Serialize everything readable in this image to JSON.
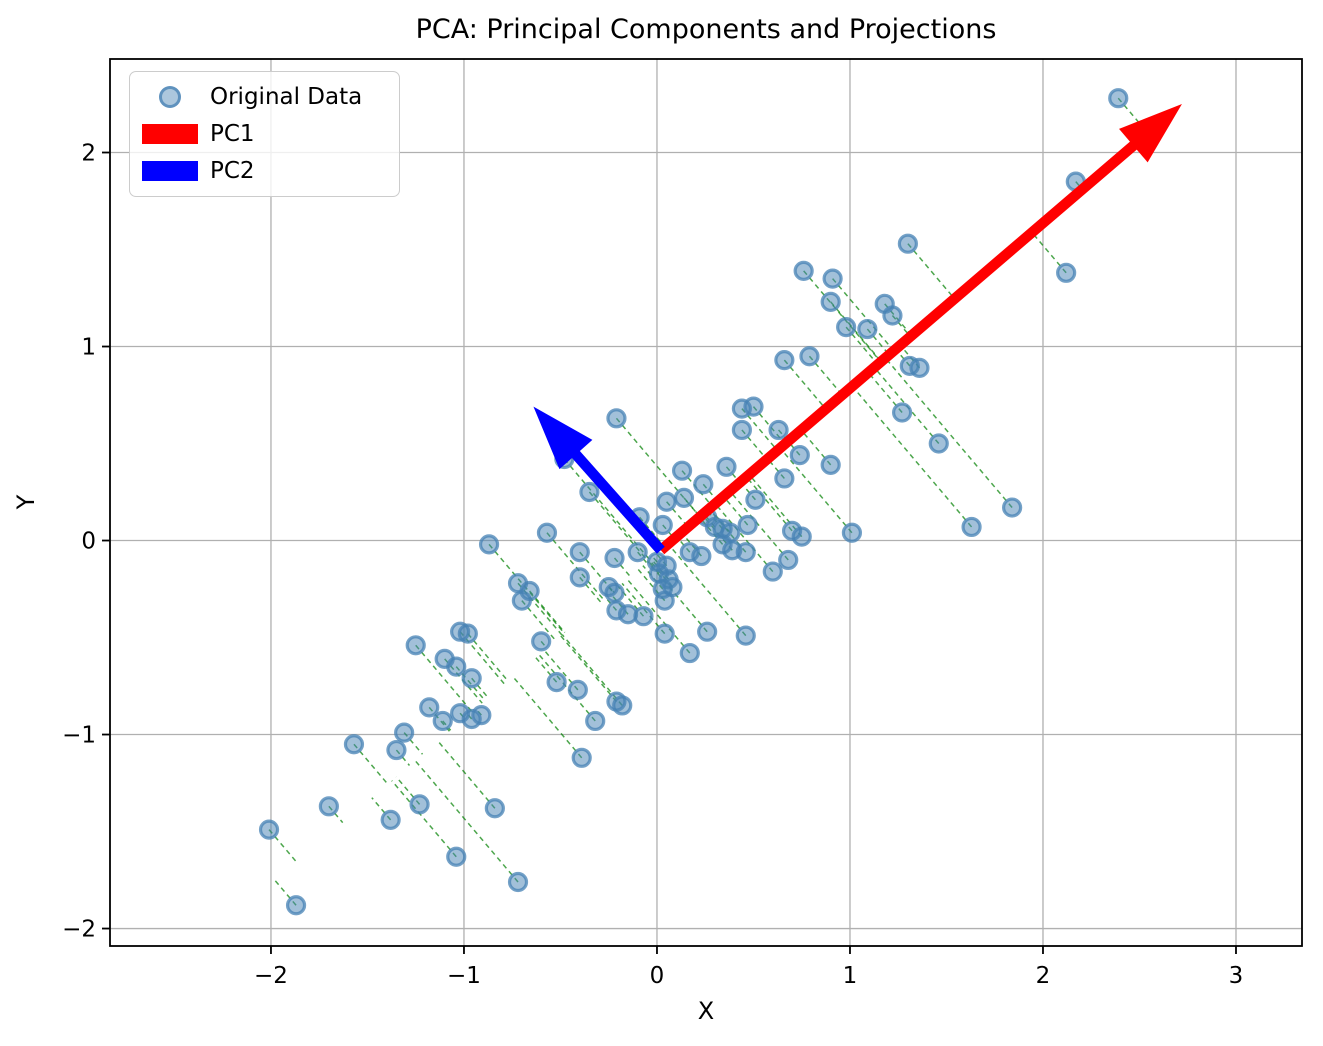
{
  "title": "PCA: Principal Components and Projections",
  "axes": {
    "xlabel": "X",
    "ylabel": "Y",
    "x_ticks": {
      "values": [
        -2,
        -1,
        0,
        1,
        2,
        3
      ],
      "labels": [
        "−2",
        "−1",
        "0",
        "1",
        "2",
        "3"
      ]
    },
    "y_ticks": {
      "values": [
        -2,
        -1,
        0,
        1,
        2
      ],
      "labels": [
        "−2",
        "−1",
        "0",
        "1",
        "2"
      ]
    }
  },
  "legend": {
    "items": [
      {
        "label": "Original Data",
        "type": "marker",
        "color": "#4682B4"
      },
      {
        "label": "PC1",
        "type": "patch",
        "color": "#FF0000"
      },
      {
        "label": "PC2",
        "type": "patch",
        "color": "#0000FF"
      }
    ]
  },
  "colors": {
    "scatter_fill": "#4682B4",
    "scatter_edge": "#4682B4",
    "projection_line": "#008000",
    "pc1": "#FF0000",
    "pc2": "#0000FF",
    "grid": "#b0b0b0",
    "frame": "#000000",
    "text": "#000000"
  },
  "chart_data": {
    "type": "scatter",
    "title": "PCA: Principal Components and Projections",
    "xlabel": "X",
    "ylabel": "Y",
    "xlim": [
      -2.834,
      3.342
    ],
    "ylim": [
      -2.09,
      2.482
    ],
    "grid": true,
    "legend_position": "upper left",
    "mean": [
      0.02,
      -0.05
    ],
    "pc1": {
      "name": "PC1",
      "color": "#FF0000",
      "start": [
        0.02,
        -0.05
      ],
      "tip": [
        2.72,
        2.25
      ]
    },
    "pc2": {
      "name": "PC2",
      "color": "#0000FF",
      "start": [
        0.02,
        -0.05
      ],
      "tip": [
        -0.64,
        0.69
      ]
    },
    "projection_lines": {
      "color": "#008000",
      "style": "dashed",
      "target": "pc1-axis"
    },
    "series": [
      {
        "name": "Original Data",
        "points": [
          [
            2.39,
            2.28
          ],
          [
            2.17,
            1.85
          ],
          [
            2.12,
            1.38
          ],
          [
            1.3,
            1.53
          ],
          [
            0.76,
            1.39
          ],
          [
            0.91,
            1.35
          ],
          [
            0.9,
            1.23
          ],
          [
            1.18,
            1.22
          ],
          [
            1.22,
            1.16
          ],
          [
            0.98,
            1.1
          ],
          [
            1.09,
            1.09
          ],
          [
            0.66,
            0.93
          ],
          [
            0.79,
            0.95
          ],
          [
            1.31,
            0.9
          ],
          [
            1.36,
            0.89
          ],
          [
            1.27,
            0.66
          ],
          [
            1.46,
            0.5
          ],
          [
            1.63,
            0.07
          ],
          [
            1.84,
            0.17
          ],
          [
            -0.21,
            0.63
          ],
          [
            0.44,
            0.68
          ],
          [
            0.5,
            0.69
          ],
          [
            0.44,
            0.57
          ],
          [
            0.63,
            0.57
          ],
          [
            0.13,
            0.36
          ],
          [
            0.24,
            0.29
          ],
          [
            0.36,
            0.38
          ],
          [
            0.74,
            0.44
          ],
          [
            0.9,
            0.39
          ],
          [
            0.66,
            0.32
          ],
          [
            -0.35,
            0.25
          ],
          [
            0.14,
            0.22
          ],
          [
            0.05,
            0.2
          ],
          [
            0.51,
            0.21
          ],
          [
            0.26,
            0.12
          ],
          [
            0.3,
            0.07
          ],
          [
            0.34,
            0.06
          ],
          [
            0.38,
            0.04
          ],
          [
            0.47,
            0.08
          ],
          [
            0.7,
            0.05
          ],
          [
            0.75,
            0.02
          ],
          [
            1.01,
            0.04
          ],
          [
            0.03,
            0.08
          ],
          [
            -0.09,
            0.12
          ],
          [
            -0.48,
            0.42
          ],
          [
            -0.57,
            0.04
          ],
          [
            -0.87,
            -0.02
          ],
          [
            -0.4,
            -0.06
          ],
          [
            -0.22,
            -0.09
          ],
          [
            -0.1,
            -0.06
          ],
          [
            0.34,
            -0.02
          ],
          [
            0.39,
            -0.05
          ],
          [
            0.46,
            -0.06
          ],
          [
            0.17,
            -0.06
          ],
          [
            0.23,
            -0.08
          ],
          [
            0.68,
            -0.1
          ],
          [
            0.6,
            -0.16
          ],
          [
            0.0,
            -0.11
          ],
          [
            0.05,
            -0.13
          ],
          [
            0.01,
            -0.17
          ],
          [
            0.06,
            -0.2
          ],
          [
            0.03,
            -0.25
          ],
          [
            0.08,
            -0.24
          ],
          [
            0.04,
            -0.31
          ],
          [
            -0.4,
            -0.19
          ],
          [
            -0.25,
            -0.24
          ],
          [
            -0.22,
            -0.27
          ],
          [
            -0.21,
            -0.36
          ],
          [
            -0.15,
            -0.38
          ],
          [
            -0.07,
            -0.39
          ],
          [
            0.04,
            -0.48
          ],
          [
            0.26,
            -0.47
          ],
          [
            0.17,
            -0.58
          ],
          [
            0.46,
            -0.49
          ],
          [
            -0.72,
            -0.22
          ],
          [
            -0.66,
            -0.26
          ],
          [
            -0.7,
            -0.31
          ],
          [
            -0.6,
            -0.52
          ],
          [
            -1.02,
            -0.47
          ],
          [
            -0.98,
            -0.48
          ],
          [
            -1.1,
            -0.61
          ],
          [
            -1.04,
            -0.65
          ],
          [
            -0.96,
            -0.71
          ],
          [
            -1.25,
            -0.54
          ],
          [
            -0.52,
            -0.73
          ],
          [
            -0.41,
            -0.77
          ],
          [
            -0.21,
            -0.83
          ],
          [
            -0.18,
            -0.85
          ],
          [
            -0.32,
            -0.93
          ],
          [
            -0.39,
            -1.12
          ],
          [
            -1.18,
            -0.86
          ],
          [
            -1.11,
            -0.93
          ],
          [
            -1.02,
            -0.89
          ],
          [
            -0.96,
            -0.92
          ],
          [
            -0.91,
            -0.9
          ],
          [
            -1.31,
            -0.99
          ],
          [
            -1.57,
            -1.05
          ],
          [
            -1.35,
            -1.08
          ],
          [
            -1.7,
            -1.37
          ],
          [
            -1.23,
            -1.36
          ],
          [
            -1.38,
            -1.44
          ],
          [
            -0.84,
            -1.38
          ],
          [
            -2.01,
            -1.49
          ],
          [
            -1.04,
            -1.63
          ],
          [
            -0.72,
            -1.76
          ],
          [
            -1.87,
            -1.88
          ]
        ]
      }
    ]
  }
}
